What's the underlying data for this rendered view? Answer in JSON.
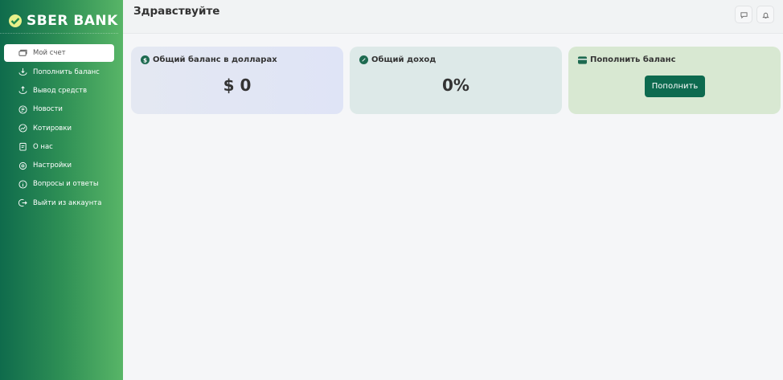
{
  "brand": {
    "name": "SBER BANK"
  },
  "sidebar": {
    "items": [
      {
        "label": "Мой счет",
        "icon": "wallet-icon",
        "active": true
      },
      {
        "label": "Пополнить баланс",
        "icon": "deposit-icon"
      },
      {
        "label": "Вывод средств",
        "icon": "withdraw-icon"
      },
      {
        "label": "Новости",
        "icon": "news-icon"
      },
      {
        "label": "Котировки",
        "icon": "chart-icon"
      },
      {
        "label": "О нас",
        "icon": "clipboard-icon"
      },
      {
        "label": "Настройки",
        "icon": "gear-icon"
      },
      {
        "label": "Вопросы и ответы",
        "icon": "info-icon"
      },
      {
        "label": "Выйти из аккаунта",
        "icon": "logout-icon"
      }
    ]
  },
  "header": {
    "title": "Здравствуйте"
  },
  "cards": {
    "balance": {
      "title": "Общий баланс в долларах",
      "value": "$ 0"
    },
    "income": {
      "title": "Общий доход",
      "value": "0%"
    },
    "topup": {
      "title": "Пополнить баланс",
      "button": "Пополнить"
    }
  },
  "colors": {
    "accent": "#0d6a4f",
    "card_balance": "#e1e6f5",
    "card_income": "#dde9e8",
    "card_topup": "#d8e8d2"
  }
}
